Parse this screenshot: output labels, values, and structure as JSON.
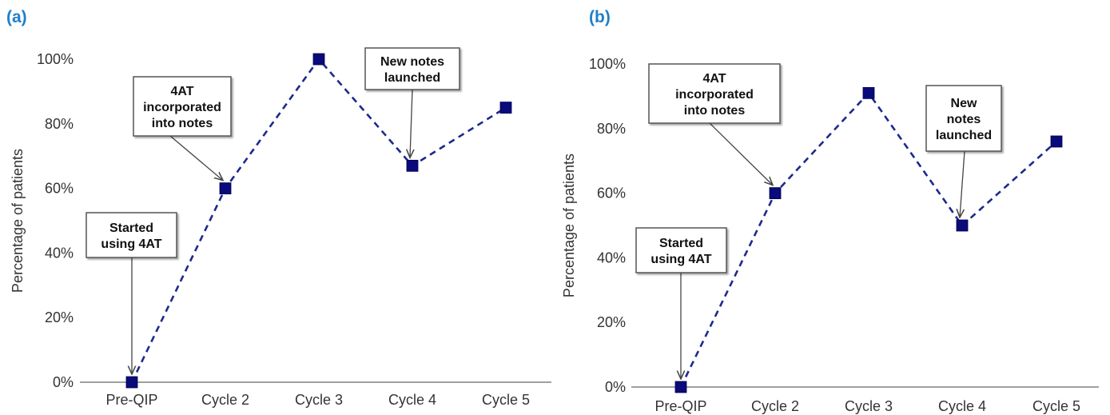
{
  "colors": {
    "panel_label": "#1f7fc8",
    "series": "#1c2a8c",
    "marker": "#0a0a7a",
    "axis": "#808080"
  },
  "chart_data": [
    {
      "panel_label": "(a)",
      "type": "line",
      "categories": [
        "Pre-QIP",
        "Cycle 2",
        "Cycle 3",
        "Cycle 4",
        "Cycle 5"
      ],
      "series": [
        {
          "values": [
            0,
            60,
            100,
            67,
            85
          ]
        }
      ],
      "ylabel": "Percentage of patients",
      "ylim": [
        0,
        100
      ],
      "yticks": [
        "0%",
        "20%",
        "40%",
        "60%",
        "80%",
        "100%"
      ],
      "line_style": "dashed",
      "marker": "square",
      "grid": false,
      "annotations": [
        {
          "lines": [
            "Started",
            "using 4AT"
          ],
          "points_to": "Pre-QIP"
        },
        {
          "lines": [
            "4AT",
            "incorporated",
            "into notes"
          ],
          "points_to": "Cycle 2"
        },
        {
          "lines": [
            "New notes",
            "launched"
          ],
          "points_to": "Cycle 4"
        }
      ]
    },
    {
      "panel_label": "(b)",
      "type": "line",
      "categories": [
        "Pre-QIP",
        "Cycle 2",
        "Cycle 3",
        "Cycle 4",
        "Cycle 5"
      ],
      "series": [
        {
          "values": [
            0,
            60,
            91,
            50,
            76
          ]
        }
      ],
      "ylabel": "Percentage of patients",
      "ylim": [
        0,
        100
      ],
      "yticks": [
        "0%",
        "20%",
        "40%",
        "60%",
        "80%",
        "100%"
      ],
      "line_style": "dashed",
      "marker": "square",
      "grid": false,
      "annotations": [
        {
          "lines": [
            "Started",
            "using 4AT"
          ],
          "points_to": "Pre-QIP"
        },
        {
          "lines": [
            "4AT",
            "incorporated",
            "into notes"
          ],
          "points_to": "Cycle 2"
        },
        {
          "lines": [
            "New",
            "notes",
            "launched"
          ],
          "points_to": "Cycle 4"
        }
      ]
    }
  ]
}
